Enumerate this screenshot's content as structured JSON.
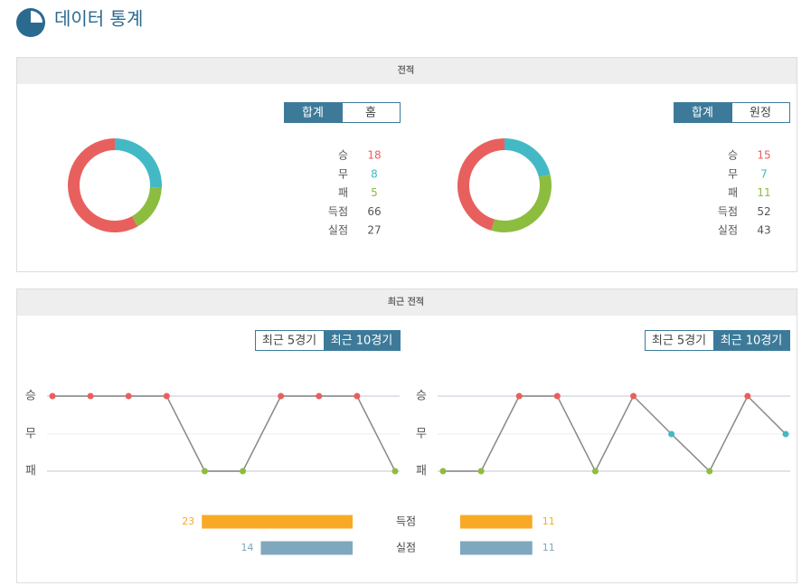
{
  "header": {
    "title": "데이터 통계"
  },
  "record": {
    "title": "전적",
    "panels": [
      {
        "tabs": [
          "합계",
          "홈"
        ],
        "active_tab": 0,
        "stats": [
          {
            "label": "승",
            "value": 18,
            "color": "#e8605e"
          },
          {
            "label": "무",
            "value": 8,
            "color": "#44b9c6"
          },
          {
            "label": "패",
            "value": 5,
            "color": "#8cbd3f"
          },
          {
            "label": "득점",
            "value": 66
          },
          {
            "label": "실점",
            "value": 27
          }
        ]
      },
      {
        "tabs": [
          "합계",
          "원정"
        ],
        "active_tab": 0,
        "stats": [
          {
            "label": "승",
            "value": 15,
            "color": "#e8605e"
          },
          {
            "label": "무",
            "value": 7,
            "color": "#44b9c6"
          },
          {
            "label": "패",
            "value": 11,
            "color": "#8cbd3f"
          },
          {
            "label": "득점",
            "value": 52
          },
          {
            "label": "실점",
            "value": 43
          }
        ]
      }
    ]
  },
  "recent": {
    "title": "최근 전적",
    "levels": [
      {
        "label": "승",
        "color": "#e8605e"
      },
      {
        "label": "무",
        "color": "#44b9c6"
      },
      {
        "label": "패",
        "color": "#8cbd3f"
      }
    ],
    "panels": [
      {
        "tabs": [
          "최근 5경기",
          "최근 10경기"
        ],
        "active_tab": 1,
        "results": [
          "승",
          "승",
          "승",
          "승",
          "패",
          "패",
          "승",
          "승",
          "승",
          "패"
        ]
      },
      {
        "tabs": [
          "최근 5경기",
          "최근 10경기"
        ],
        "active_tab": 1,
        "results": [
          "패",
          "패",
          "승",
          "승",
          "패",
          "승",
          "무",
          "패",
          "승",
          "무"
        ]
      }
    ],
    "bars": [
      {
        "label": "득점",
        "color": "#f8a925",
        "values": [
          23,
          11
        ]
      },
      {
        "label": "실점",
        "color": "#7fa7bd",
        "values": [
          14,
          11
        ]
      }
    ]
  }
}
